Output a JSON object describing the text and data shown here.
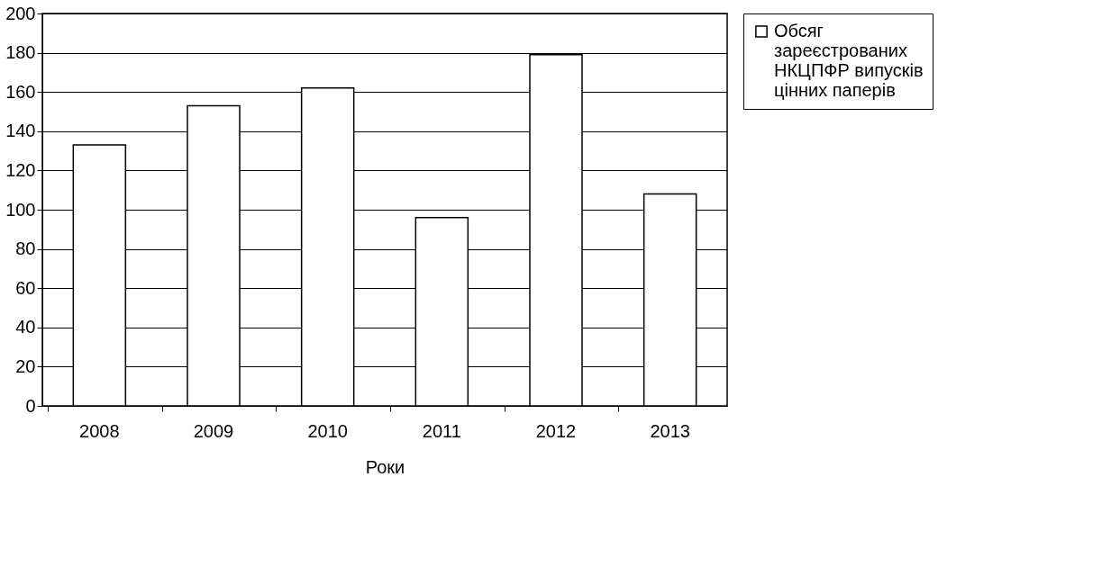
{
  "chart_data": {
    "type": "bar",
    "xlabel": "Роки",
    "categories": [
      "2008",
      "2009",
      "2010",
      "2011",
      "2012",
      "2013"
    ],
    "series": [
      {
        "name": "Обсяг зареєстрованих НКЦПФР випусків цінних паперів",
        "color": "#ffffff",
        "values": [
          133,
          153,
          162,
          96,
          179,
          108
        ]
      }
    ],
    "ylim": [
      0,
      200
    ],
    "yticks": [
      0,
      20,
      40,
      60,
      80,
      100,
      120,
      140,
      160,
      180,
      200
    ],
    "grid": "y",
    "legend": "right"
  }
}
